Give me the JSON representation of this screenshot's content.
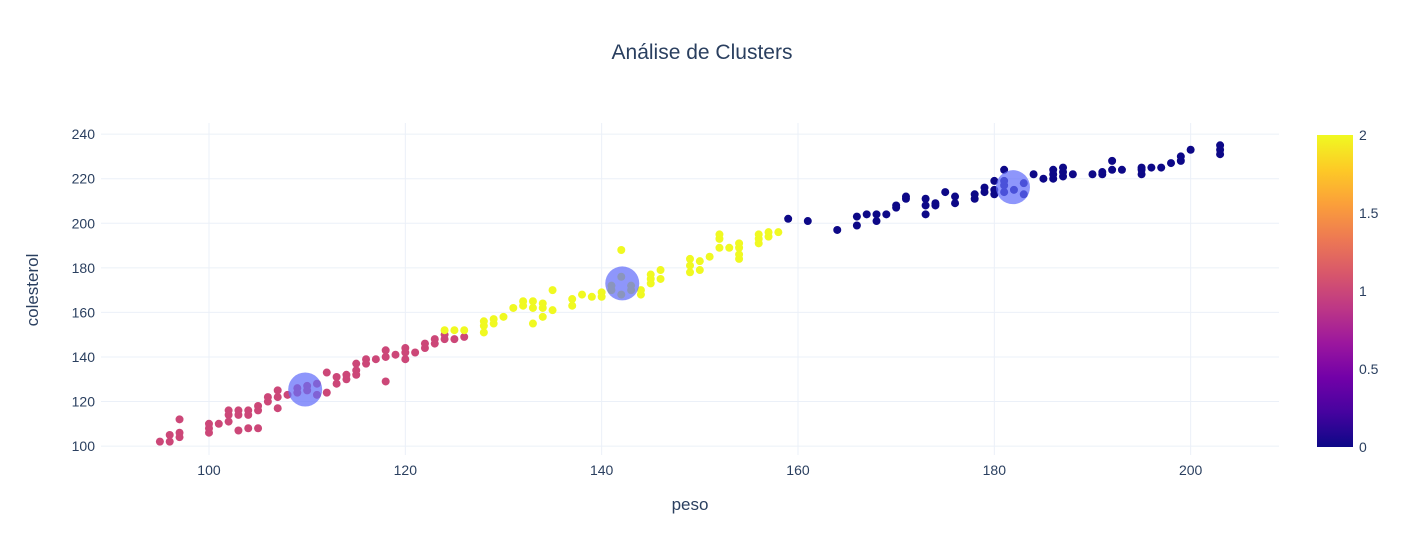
{
  "chart_data": {
    "type": "scatter",
    "title": "Análise de Clusters",
    "xlabel": "peso",
    "ylabel": "colesterol",
    "xlim": [
      89,
      209
    ],
    "ylim": [
      96,
      245
    ],
    "xticks": [
      100,
      120,
      140,
      160,
      180,
      200
    ],
    "yticks": [
      100,
      120,
      140,
      160,
      180,
      200,
      220,
      240
    ],
    "grid": true,
    "colorbar": {
      "min": 0,
      "max": 2,
      "ticks": [
        "0",
        "0.5",
        "1",
        "1.5",
        "2"
      ],
      "colorscale": [
        "#0d0887",
        "#46039f",
        "#7201a8",
        "#9c179e",
        "#bd3786",
        "#d8576b",
        "#ed7953",
        "#fb9f3a",
        "#fdca26",
        "#f0f921"
      ]
    },
    "cluster_colors": [
      "#0d0887",
      "#cc4778",
      "#f0f921"
    ],
    "centroid_color": "#636efa",
    "centroids": [
      {
        "x": 109.8,
        "y": 125.4
      },
      {
        "x": 142.1,
        "y": 173.0
      },
      {
        "x": 181.9,
        "y": 216.2
      }
    ],
    "clusters": [
      {
        "label": 1,
        "points": [
          [
            95,
            102
          ],
          [
            96,
            102
          ],
          [
            96,
            105
          ],
          [
            97,
            104
          ],
          [
            97,
            106
          ],
          [
            97,
            112
          ],
          [
            100,
            106
          ],
          [
            100,
            108
          ],
          [
            100,
            110
          ],
          [
            101,
            110
          ],
          [
            102,
            111
          ],
          [
            102,
            114
          ],
          [
            102,
            116
          ],
          [
            103,
            107
          ],
          [
            103,
            114
          ],
          [
            103,
            116
          ],
          [
            104,
            108
          ],
          [
            104,
            114
          ],
          [
            104,
            116
          ],
          [
            105,
            108
          ],
          [
            105,
            116
          ],
          [
            105,
            118
          ],
          [
            106,
            120
          ],
          [
            106,
            122
          ],
          [
            107,
            117
          ],
          [
            107,
            122
          ],
          [
            107,
            125
          ],
          [
            108,
            123
          ],
          [
            109,
            124
          ],
          [
            109,
            126
          ],
          [
            110,
            125
          ],
          [
            110,
            127
          ],
          [
            111,
            123
          ],
          [
            111,
            128
          ],
          [
            112,
            124
          ],
          [
            112,
            133
          ],
          [
            113,
            128
          ],
          [
            113,
            131
          ],
          [
            114,
            130
          ],
          [
            114,
            132
          ],
          [
            115,
            132
          ],
          [
            115,
            134
          ],
          [
            115,
            137
          ],
          [
            116,
            137
          ],
          [
            116,
            139
          ],
          [
            117,
            139
          ],
          [
            118,
            129
          ],
          [
            118,
            140
          ],
          [
            118,
            143
          ],
          [
            119,
            141
          ],
          [
            120,
            139
          ],
          [
            120,
            142
          ],
          [
            120,
            144
          ],
          [
            121,
            142
          ],
          [
            122,
            144
          ],
          [
            122,
            146
          ],
          [
            123,
            146
          ],
          [
            123,
            148
          ],
          [
            124,
            148
          ],
          [
            124,
            150
          ],
          [
            125,
            148
          ],
          [
            126,
            149
          ]
        ]
      },
      {
        "label": 2,
        "points": [
          [
            124,
            152
          ],
          [
            125,
            152
          ],
          [
            126,
            152
          ],
          [
            128,
            151
          ],
          [
            128,
            154
          ],
          [
            128,
            156
          ],
          [
            129,
            155
          ],
          [
            129,
            157
          ],
          [
            130,
            158
          ],
          [
            131,
            162
          ],
          [
            132,
            163
          ],
          [
            132,
            165
          ],
          [
            133,
            155
          ],
          [
            133,
            162
          ],
          [
            133,
            165
          ],
          [
            134,
            158
          ],
          [
            134,
            162
          ],
          [
            134,
            164
          ],
          [
            135,
            161
          ],
          [
            135,
            170
          ],
          [
            137,
            163
          ],
          [
            137,
            166
          ],
          [
            138,
            168
          ],
          [
            139,
            167
          ],
          [
            140,
            167
          ],
          [
            140,
            169
          ],
          [
            141,
            170
          ],
          [
            141,
            172
          ],
          [
            142,
            168
          ],
          [
            142,
            176
          ],
          [
            142,
            188
          ],
          [
            143,
            170
          ],
          [
            143,
            172
          ],
          [
            144,
            168
          ],
          [
            144,
            170
          ],
          [
            145,
            173
          ],
          [
            145,
            175
          ],
          [
            145,
            177
          ],
          [
            146,
            175
          ],
          [
            146,
            179
          ],
          [
            149,
            178
          ],
          [
            149,
            181
          ],
          [
            149,
            184
          ],
          [
            150,
            179
          ],
          [
            150,
            183
          ],
          [
            151,
            185
          ],
          [
            152,
            189
          ],
          [
            152,
            193
          ],
          [
            152,
            195
          ],
          [
            153,
            189
          ],
          [
            154,
            184
          ],
          [
            154,
            186
          ],
          [
            154,
            189
          ],
          [
            154,
            191
          ],
          [
            156,
            191
          ],
          [
            156,
            193
          ],
          [
            156,
            195
          ],
          [
            157,
            194
          ],
          [
            157,
            196
          ],
          [
            158,
            196
          ]
        ]
      },
      {
        "label": 0,
        "points": [
          [
            159,
            202
          ],
          [
            161,
            201
          ],
          [
            164,
            197
          ],
          [
            166,
            199
          ],
          [
            166,
            203
          ],
          [
            167,
            204
          ],
          [
            168,
            201
          ],
          [
            168,
            204
          ],
          [
            169,
            204
          ],
          [
            170,
            207
          ],
          [
            170,
            208
          ],
          [
            171,
            211
          ],
          [
            171,
            212
          ],
          [
            173,
            204
          ],
          [
            173,
            208
          ],
          [
            173,
            211
          ],
          [
            174,
            208
          ],
          [
            174,
            209
          ],
          [
            175,
            214
          ],
          [
            176,
            209
          ],
          [
            176,
            212
          ],
          [
            178,
            211
          ],
          [
            178,
            213
          ],
          [
            179,
            214
          ],
          [
            179,
            216
          ],
          [
            180,
            213
          ],
          [
            180,
            215
          ],
          [
            180,
            219
          ],
          [
            181,
            214
          ],
          [
            181,
            217
          ],
          [
            181,
            219
          ],
          [
            181,
            224
          ],
          [
            182,
            215
          ],
          [
            183,
            213
          ],
          [
            183,
            218
          ],
          [
            184,
            222
          ],
          [
            185,
            220
          ],
          [
            186,
            220
          ],
          [
            186,
            222
          ],
          [
            186,
            224
          ],
          [
            187,
            221
          ],
          [
            187,
            223
          ],
          [
            187,
            225
          ],
          [
            188,
            222
          ],
          [
            190,
            222
          ],
          [
            191,
            222
          ],
          [
            191,
            223
          ],
          [
            192,
            224
          ],
          [
            192,
            228
          ],
          [
            193,
            224
          ],
          [
            195,
            222
          ],
          [
            195,
            224
          ],
          [
            195,
            225
          ],
          [
            196,
            225
          ],
          [
            197,
            225
          ],
          [
            198,
            227
          ],
          [
            199,
            228
          ],
          [
            199,
            230
          ],
          [
            200,
            233
          ],
          [
            203,
            231
          ],
          [
            203,
            233
          ],
          [
            203,
            235
          ]
        ]
      }
    ]
  }
}
